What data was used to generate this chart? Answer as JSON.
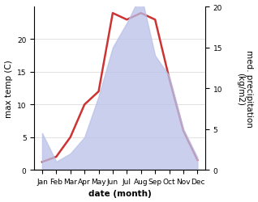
{
  "months": [
    "Jan",
    "Feb",
    "Mar",
    "Apr",
    "May",
    "Jun",
    "Jul",
    "Aug",
    "Sep",
    "Oct",
    "Nov",
    "Dec"
  ],
  "temperature": [
    1.2,
    2.0,
    5.0,
    10.0,
    12.0,
    24.0,
    23.0,
    24.0,
    23.0,
    14.0,
    6.0,
    1.5
  ],
  "precipitation": [
    4.5,
    1.0,
    2.0,
    4.0,
    9.0,
    15.0,
    18.0,
    21.5,
    14.0,
    11.5,
    5.0,
    1.5
  ],
  "temp_color": "#cc3333",
  "precip_fill_color": "#b8c0e8",
  "ylabel_left": "max temp (C)",
  "ylabel_right": "med. precipitation\n(kg/m2)",
  "xlabel": "date (month)",
  "ylim_left": [
    0,
    25
  ],
  "ylim_right": [
    0,
    20
  ],
  "yticks_left": [
    0,
    5,
    10,
    15,
    20
  ],
  "yticks_right": [
    0,
    5,
    10,
    15,
    20
  ],
  "background_color": "#ffffff",
  "label_fontsize": 7.5,
  "tick_fontsize": 6.5,
  "line_width": 1.8
}
